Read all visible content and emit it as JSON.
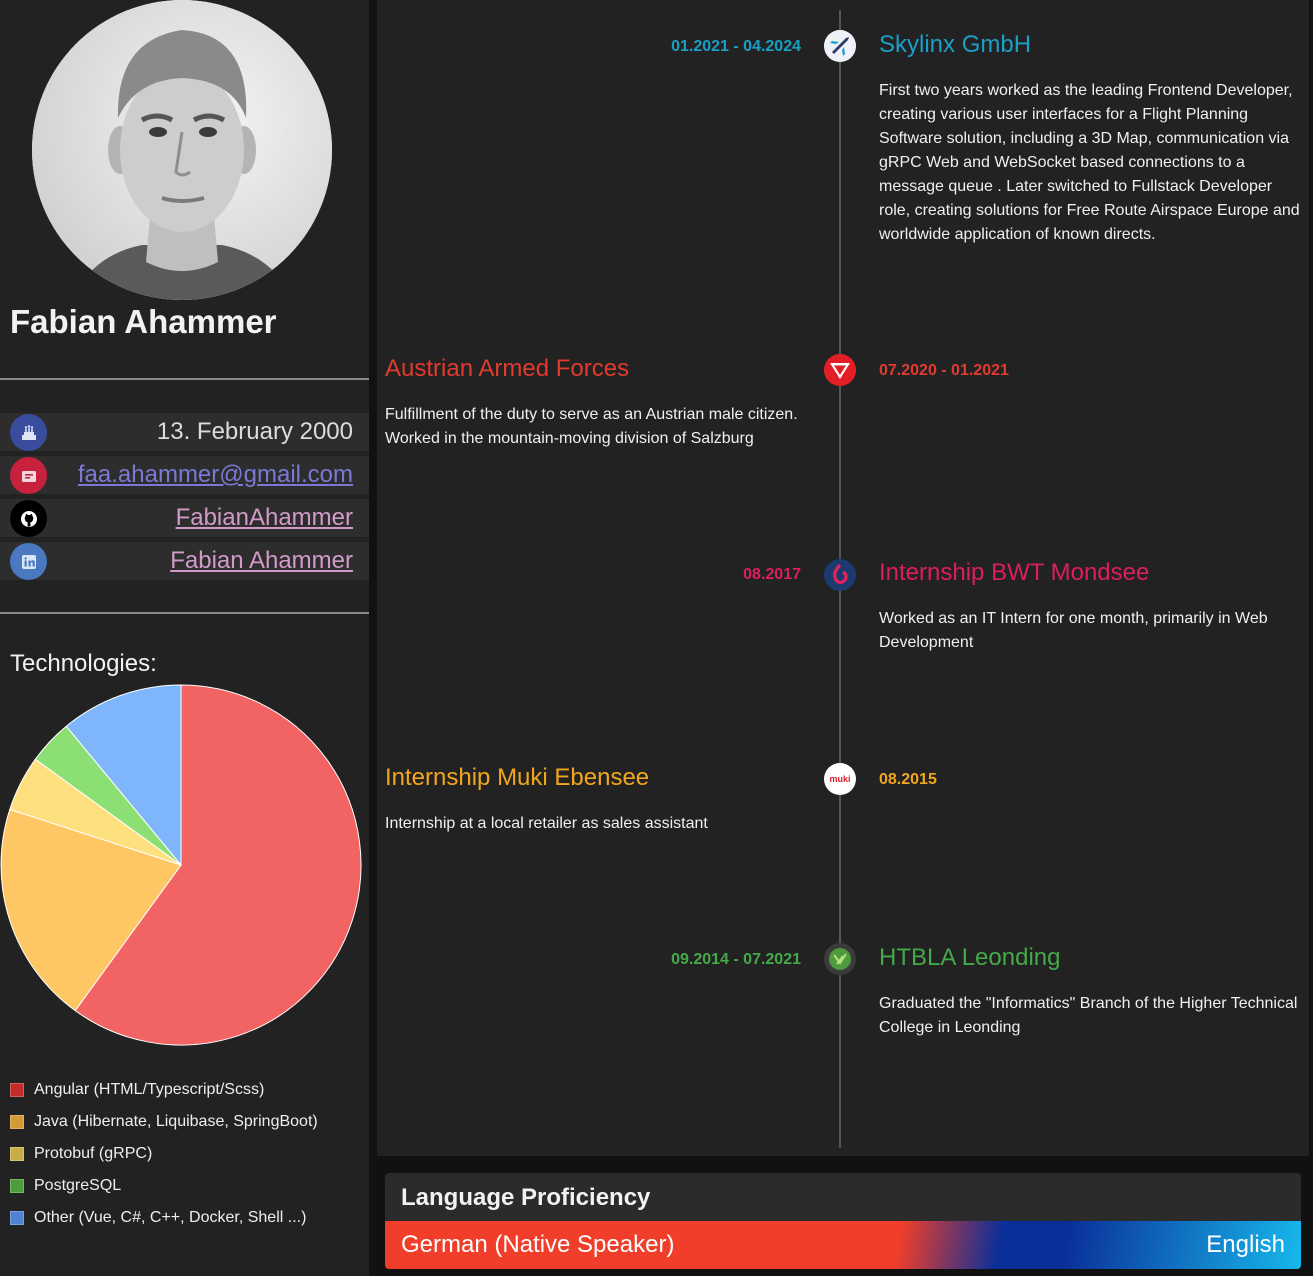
{
  "profile": {
    "name": "Fabian Ahammer",
    "birthday": "13. February 2000",
    "email": "faa.ahammer@gmail.com",
    "github": "FabianAhammer",
    "linkedin": "Fabian Ahammer"
  },
  "icons": {
    "birthday": "cake-icon",
    "email": "email-icon",
    "github": "github-icon",
    "linkedin": "linkedin-icon"
  },
  "colors": {
    "birthday_icon_bg": "#3a4c9e",
    "email_icon_bg": "#c8213e",
    "github_icon_bg": "#000000",
    "linkedin_icon_bg": "#4a79c2",
    "email_link": "#7b79d6",
    "social_link": "#d39ac9"
  },
  "technologies": {
    "title": "Technologies:"
  },
  "chart_data": {
    "type": "pie",
    "categories": [
      "Angular (HTML/Typescript/Scss)",
      "Java (Hibernate, Liquibase, SpringBoot)",
      "Protobuf (gRPC)",
      "PostgreSQL",
      "Other (Vue, C#, C++, Docker, Shell ...)"
    ],
    "values": [
      60,
      20,
      5,
      4,
      11
    ],
    "colors": [
      "#f26363",
      "#ffc764",
      "#ffe07e",
      "#8bdf73",
      "#7fb6fb"
    ],
    "legend_swatch_colors": [
      "#c32a2a",
      "#d39a36",
      "#c9ae48",
      "#4d9c3c",
      "#4f82d0"
    ],
    "legend_position": "bottom"
  },
  "timeline": [
    {
      "date": "01.2021 - 04.2024",
      "title": "Skylinx GmbH",
      "description": "First two years worked as the leading Frontend Developer, creating various user interfaces for a Flight Planning Software solution, including a 3D Map, communication via gRPC Web and WebSocket based connections to a message queue . Later switched to Fullstack Developer role, creating solutions for Free Route Airspace Europe and worldwide application of known directs.",
      "color": "#1a9fc6",
      "icon": "airplane-icon"
    },
    {
      "date": "07.2020 - 01.2021",
      "title": "Austrian Armed Forces",
      "description": "Fulfillment of the duty to serve as an Austrian male citizen. Worked in the mountain-moving division of Salzburg",
      "color": "#e13b2f",
      "icon": "armed-forces-triangle-icon"
    },
    {
      "date": "08.2017",
      "title": "Internship BWT Mondsee",
      "description": "Worked as an IT Intern for one month, primarily in Web Development",
      "color": "#dd1e5c",
      "icon": "bwt-logo-icon"
    },
    {
      "date": "08.2015",
      "title": "Internship Muki Ebensee",
      "description": "Internship at a local retailer as sales assistant",
      "color": "#f2a61e",
      "icon": "muki-logo-icon",
      "logo_text": "muki"
    },
    {
      "date": "09.2014 - 07.2021",
      "title": "HTBLA Leonding",
      "description": "Graduated the \"Informatics\" Branch of the Higher Technical College in Leonding",
      "color": "#44a948",
      "icon": "htl-logo-icon"
    }
  ],
  "language": {
    "title": "Language Proficiency",
    "native": "German (Native Speaker)",
    "other": "English"
  }
}
